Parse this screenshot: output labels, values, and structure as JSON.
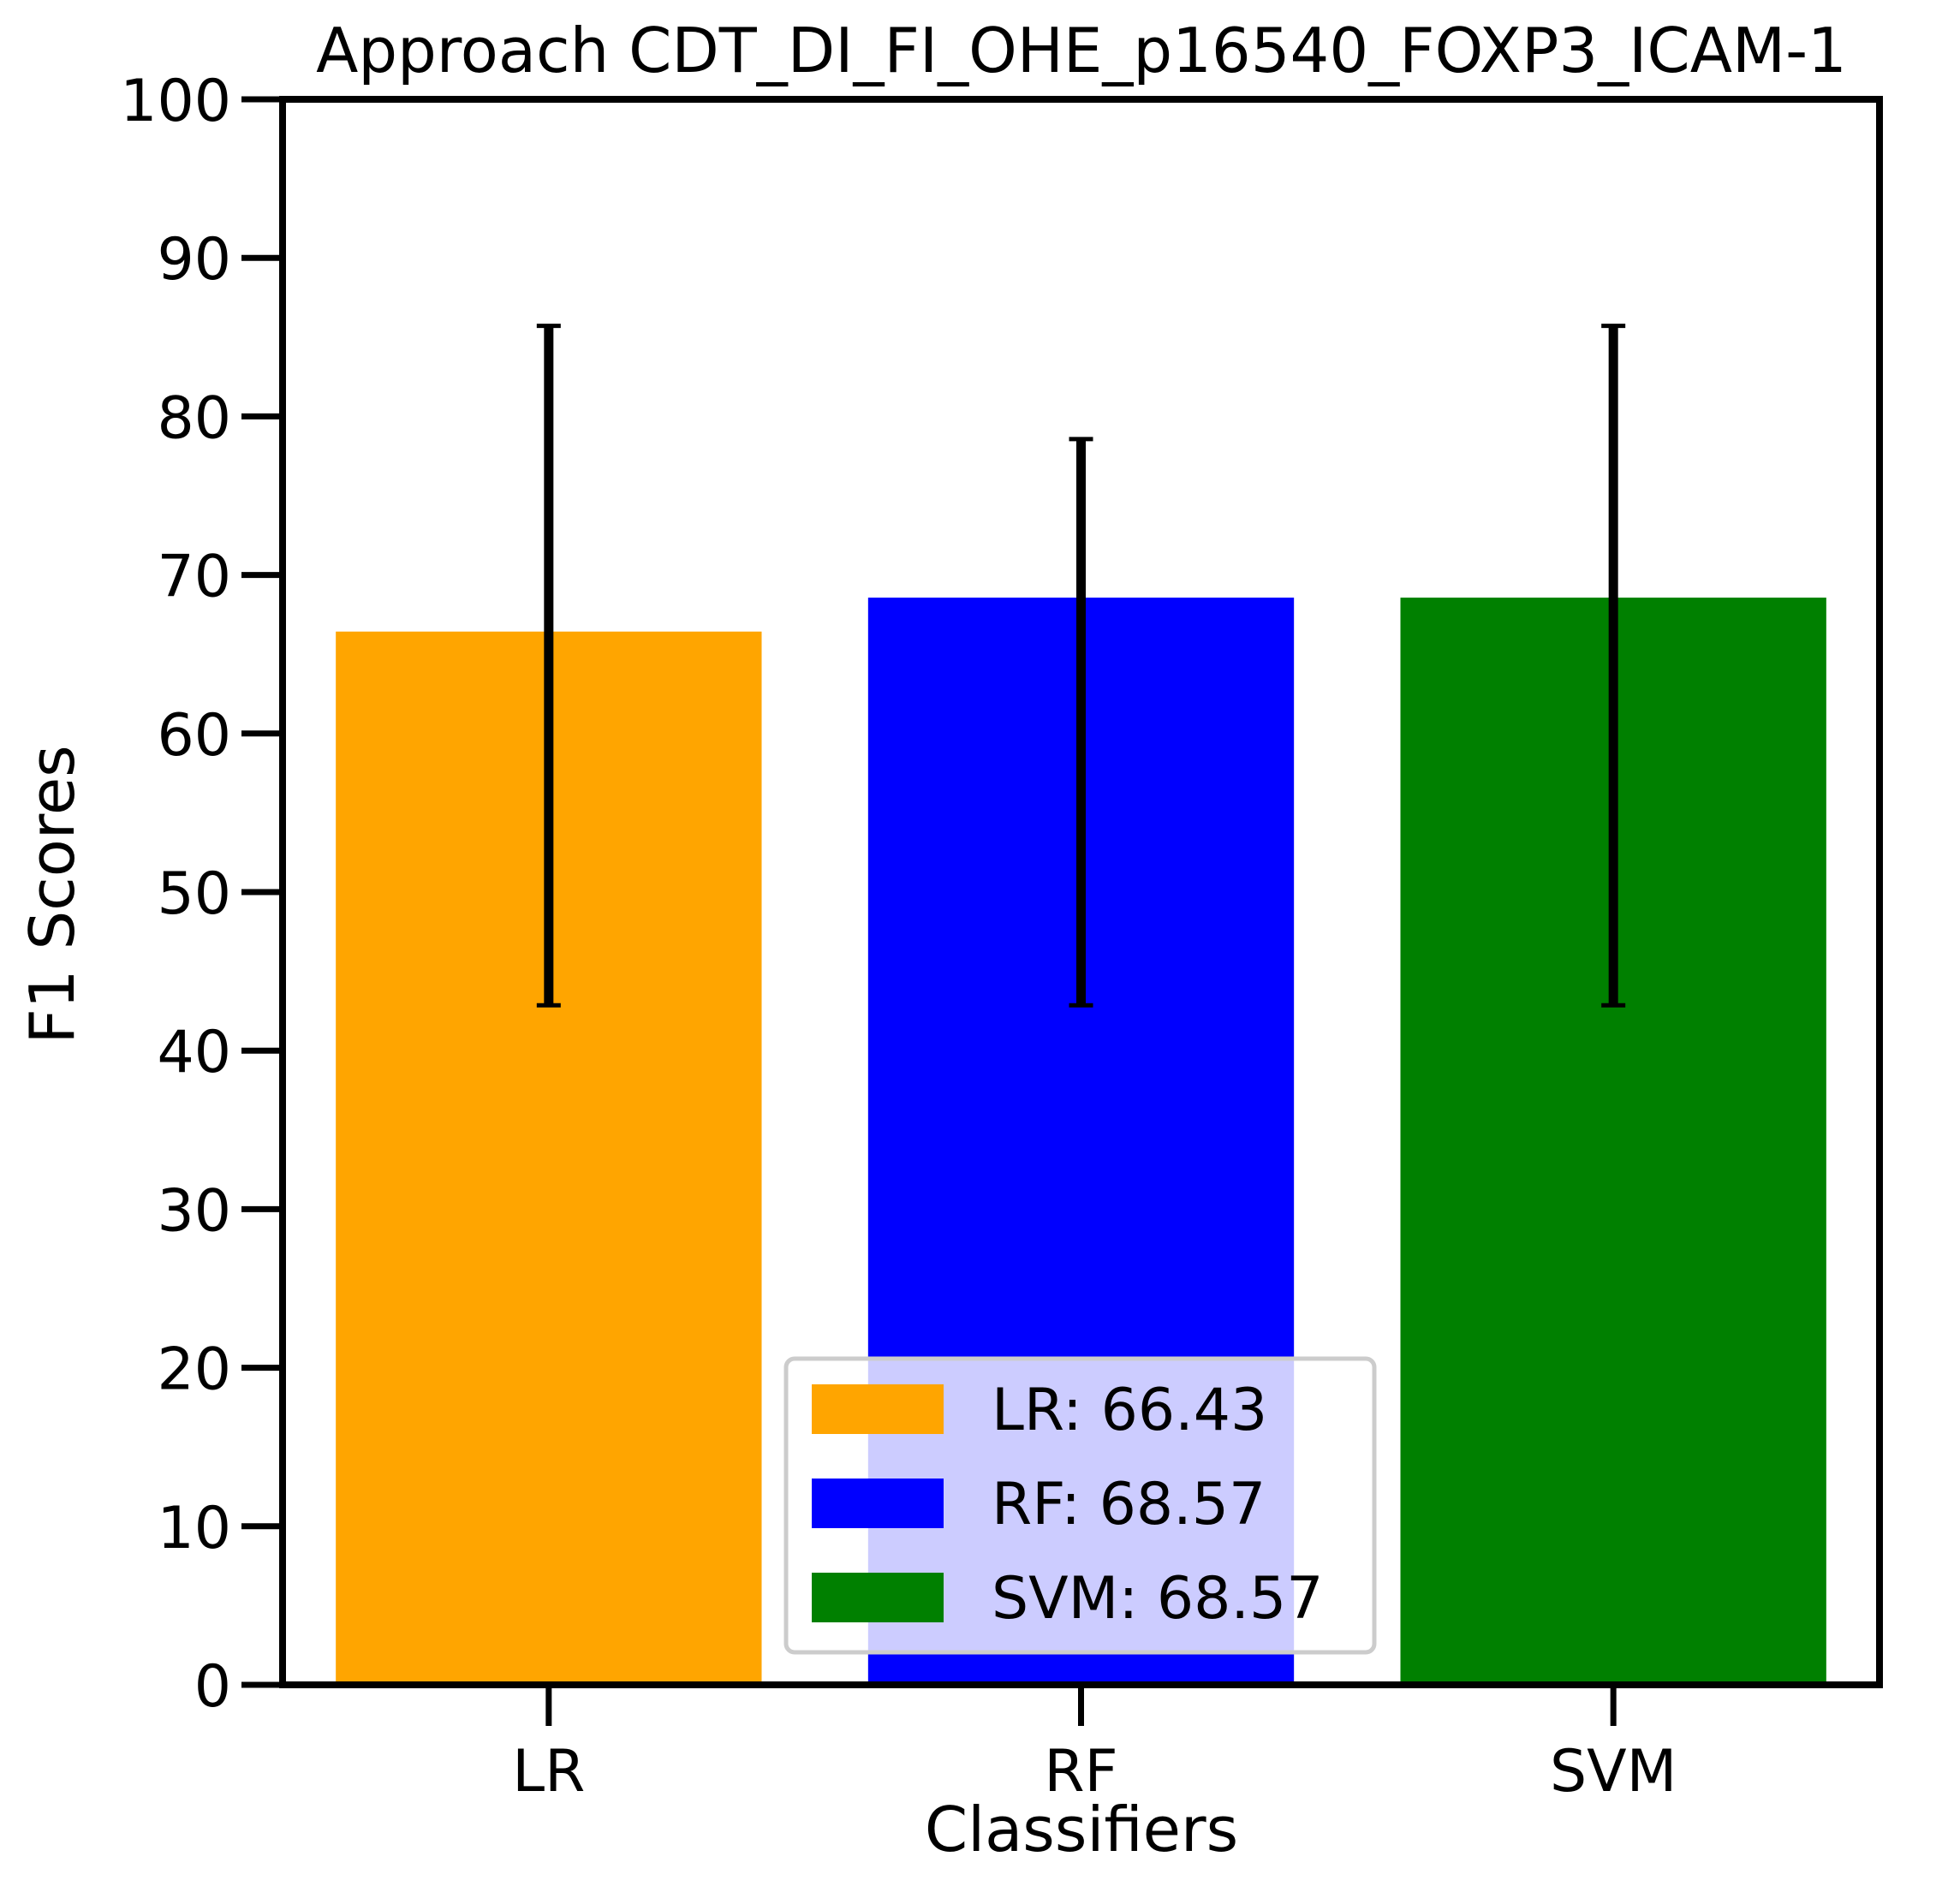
{
  "chart_data": {
    "type": "bar",
    "title": "Approach CDT_DI_FI_OHE_p16540_FOXP3_ICAM-1",
    "xlabel": "Classifiers",
    "ylabel": "F1 Scores",
    "ylim": [
      0,
      100
    ],
    "yticks": [
      0,
      10,
      20,
      30,
      40,
      50,
      60,
      70,
      80,
      90,
      100
    ],
    "categories": [
      "LR",
      "RF",
      "SVM"
    ],
    "values": [
      66.43,
      68.57,
      68.57
    ],
    "error_bars": [
      {
        "lower": 42.86,
        "upper": 85.71
      },
      {
        "lower": 42.86,
        "upper": 78.57
      },
      {
        "lower": 42.86,
        "upper": 85.71
      }
    ],
    "colors": [
      "#ffa500",
      "#0000ff",
      "#008000"
    ],
    "grid": false,
    "legend": {
      "placement": "lower-center",
      "entries": [
        "LR: 66.43",
        "RF: 68.57",
        "SVM: 68.57"
      ]
    }
  }
}
